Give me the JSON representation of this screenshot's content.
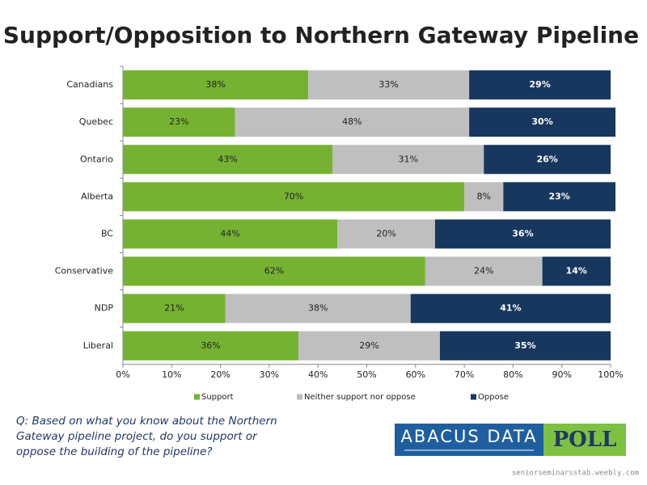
{
  "chart_data": {
    "type": "stacked-bar-horizontal",
    "title": "Support/Opposition to Northern Gateway Pipeline",
    "categories": [
      "Canadians",
      "Quebec",
      "Ontario",
      "Alberta",
      "BC",
      "Conservative",
      "NDP",
      "Liberal"
    ],
    "series": [
      {
        "name": "Support",
        "color": "#76b232",
        "values": [
          38,
          23,
          43,
          70,
          44,
          62,
          21,
          36
        ],
        "value_labels": [
          "38%",
          "23%",
          "43%",
          "70%",
          "44%",
          "62%",
          "21%",
          "36%"
        ]
      },
      {
        "name": "Neither support nor oppose",
        "color": "#bfbfbf",
        "values": [
          33,
          48,
          31,
          8,
          20,
          24,
          38,
          29
        ],
        "value_labels": [
          "33%",
          "48%",
          "31%",
          "8%",
          "20%",
          "24%",
          "38%",
          "29%"
        ]
      },
      {
        "name": "Oppose",
        "color": "#17375e",
        "values": [
          29,
          30,
          26,
          23,
          36,
          14,
          41,
          35
        ],
        "value_labels": [
          "29%",
          "30%",
          "26%",
          "23%",
          "36%",
          "14%",
          "41%",
          "35%"
        ]
      }
    ],
    "xlim": [
      0,
      100
    ],
    "xticks": [
      {
        "value": 0,
        "label": "0%"
      },
      {
        "value": 10,
        "label": "10%"
      },
      {
        "value": 20,
        "label": "20%"
      },
      {
        "value": 30,
        "label": "30%"
      },
      {
        "value": 40,
        "label": "40%"
      },
      {
        "value": 50,
        "label": "50%"
      },
      {
        "value": 60,
        "label": "60%"
      },
      {
        "value": 70,
        "label": "70%"
      },
      {
        "value": 80,
        "label": "80%"
      },
      {
        "value": 90,
        "label": "90%"
      },
      {
        "value": 100,
        "label": "100%"
      }
    ],
    "legend": "bottom"
  },
  "question": "Q: Based on what you know about the Northern Gateway pipeline project, do you support or oppose the building of the pipeline?",
  "logo": {
    "name": "ABACUS DATA",
    "badge": "POLL"
  },
  "source": "seniorseminarsstab.weebly.com"
}
